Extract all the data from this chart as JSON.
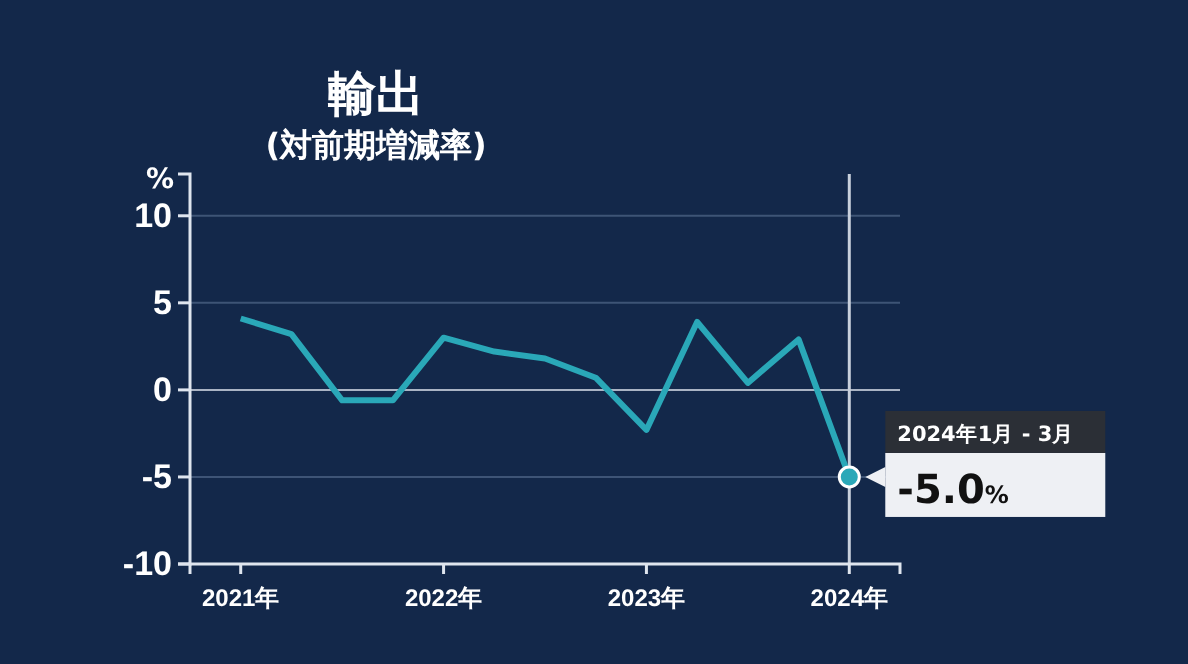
{
  "chart_data": {
    "type": "line",
    "title": "輸出",
    "subtitle": "(対前期増減率)",
    "ylabel": "%",
    "x": [
      2021,
      2021.25,
      2021.5,
      2021.75,
      2022,
      2022.25,
      2022.5,
      2022.75,
      2023,
      2023.25,
      2023.5,
      2023.75,
      2024
    ],
    "series": [
      {
        "color": "#2aa8b8",
        "values": [
          4.1,
          3.2,
          -0.6,
          -0.6,
          3.0,
          2.2,
          1.8,
          0.7,
          -2.3,
          3.9,
          0.4,
          2.9,
          -5.0
        ],
        "value_labels": [
          null,
          null,
          null,
          null,
          null,
          null,
          null,
          null,
          null,
          null,
          null,
          null,
          "-5.0%"
        ]
      }
    ],
    "xlim": [
      2020.75,
      2024.25
    ],
    "xticks": [
      {
        "value": 2021,
        "label": "2021年"
      },
      {
        "value": 2022,
        "label": "2022年"
      },
      {
        "value": 2023,
        "label": "2023年"
      },
      {
        "value": 2024,
        "label": "2024年"
      }
    ],
    "ylim": [
      -10,
      12.4
    ],
    "yticks": [
      -10,
      -5,
      0,
      5,
      10
    ],
    "grid": "y",
    "marker": "none",
    "line_style": "solid",
    "ref_lines": [
      {
        "axis": "x",
        "value": 2024,
        "color": "#c8d0dc"
      }
    ],
    "annotations": [
      {
        "text": "2024年1月 - 3月",
        "x": 2024,
        "y": -5
      }
    ]
  }
}
